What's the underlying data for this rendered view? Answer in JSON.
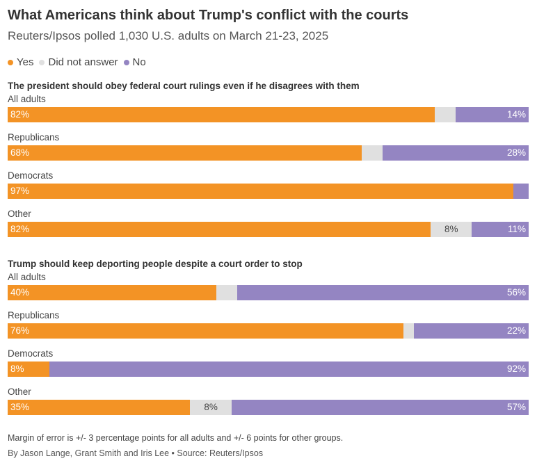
{
  "title": "What Americans think about Trump's conflict with the courts",
  "subtitle": "Reuters/Ipsos polled 1,030 U.S. adults on March 21-23, 2025",
  "legend": [
    {
      "label": "Yes",
      "color": "#f39325"
    },
    {
      "label": "Did not answer",
      "color": "#e0e0e0"
    },
    {
      "label": "No",
      "color": "#9485c2"
    }
  ],
  "footnote": "Margin of error is +/- 3 percentage points for all adults and +/- 6 points for other groups.",
  "source": "By Jason Lange, Grant Smith and Iris Lee • Source: Reuters/Ipsos",
  "chart_data": [
    {
      "type": "bar",
      "stacked": true,
      "orientation": "horizontal",
      "title": "The president should obey federal court rulings even if he disagrees with them",
      "categories": [
        "All adults",
        "Republicans",
        "Democrats",
        "Other"
      ],
      "series": [
        {
          "name": "Yes",
          "values": [
            82,
            68,
            97,
            82
          ],
          "labels": [
            "82%",
            "68%",
            "97%",
            "82%"
          ]
        },
        {
          "name": "Did not answer",
          "values": [
            4,
            4,
            0,
            8
          ],
          "labels": [
            "",
            "",
            "",
            "8%"
          ]
        },
        {
          "name": "No",
          "values": [
            14,
            28,
            3,
            11
          ],
          "labels": [
            "14%",
            "28%",
            "",
            "11%"
          ]
        }
      ],
      "xlim": [
        0,
        100
      ]
    },
    {
      "type": "bar",
      "stacked": true,
      "orientation": "horizontal",
      "title": "Trump should keep deporting people despite a court order to stop",
      "categories": [
        "All adults",
        "Republicans",
        "Democrats",
        "Other"
      ],
      "series": [
        {
          "name": "Yes",
          "values": [
            40,
            76,
            8,
            35
          ],
          "labels": [
            "40%",
            "76%",
            "8%",
            "35%"
          ]
        },
        {
          "name": "Did not answer",
          "values": [
            4,
            2,
            0,
            8
          ],
          "labels": [
            "",
            "",
            "",
            "8%"
          ]
        },
        {
          "name": "No",
          "values": [
            56,
            22,
            92,
            57
          ],
          "labels": [
            "56%",
            "22%",
            "92%",
            "57%"
          ]
        }
      ],
      "xlim": [
        0,
        100
      ]
    }
  ]
}
